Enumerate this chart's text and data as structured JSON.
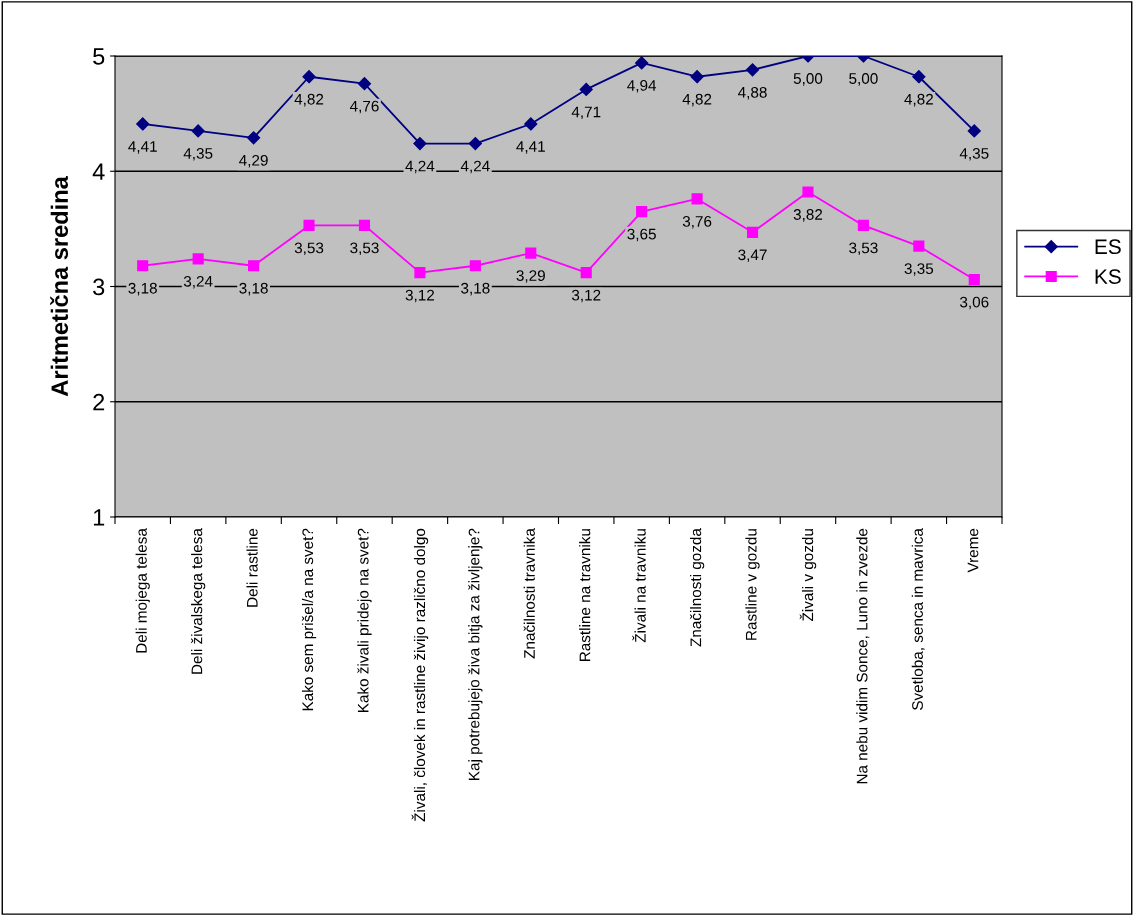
{
  "chart_data": {
    "type": "line",
    "ylabel": "Aritmetična sredina",
    "categories": [
      "Deli mojega telesa",
      "Deli živalskega telesa",
      "Deli rastline",
      "Kako sem prišel/a na svet?",
      "Kako živali pridejo na svet?",
      "Živali, človek in rastline živijo različno dolgo",
      "Kaj potrebujejo živa bitja za življenje?",
      "Značilnosti travnika",
      "Rastline na travniku",
      "Živali na travniku",
      "Značilnosti gozda",
      "Rastline v gozdu",
      "Živali v gozdu",
      "Na nebu vidim Sonce, Luno in zvezde",
      "Svetloba, senca in mavrica",
      "Vreme"
    ],
    "series": [
      {
        "name": "ES",
        "color": "#000080",
        "marker": "diamond",
        "values": [
          4.41,
          4.35,
          4.29,
          4.82,
          4.76,
          4.24,
          4.24,
          4.41,
          4.71,
          4.94,
          4.82,
          4.88,
          5.0,
          5.0,
          4.82,
          4.35
        ],
        "value_labels": [
          "4,41",
          "4,35",
          "4,29",
          "4,82",
          "4,76",
          "4,24",
          "4,24",
          "4,41",
          "4,71",
          "4,94",
          "4,82",
          "4,88",
          "5,00",
          "5,00",
          "4,82",
          "4,35"
        ]
      },
      {
        "name": "KS",
        "color": "#ff00ff",
        "marker": "square",
        "values": [
          3.18,
          3.24,
          3.18,
          3.53,
          3.53,
          3.12,
          3.18,
          3.29,
          3.12,
          3.65,
          3.76,
          3.47,
          3.82,
          3.53,
          3.35,
          3.06
        ],
        "value_labels": [
          "3,18",
          "3,24",
          "3,18",
          "3,53",
          "3,53",
          "3,12",
          "3,18",
          "3,29",
          "3,12",
          "3,65",
          "3,76",
          "3,47",
          "3,82",
          "3,53",
          "3,35",
          "3,06"
        ]
      }
    ],
    "ylim": [
      1,
      5
    ],
    "yticks": [
      1,
      2,
      3,
      4,
      5
    ],
    "grid": "y",
    "legend": "right",
    "line_style": "solid"
  }
}
